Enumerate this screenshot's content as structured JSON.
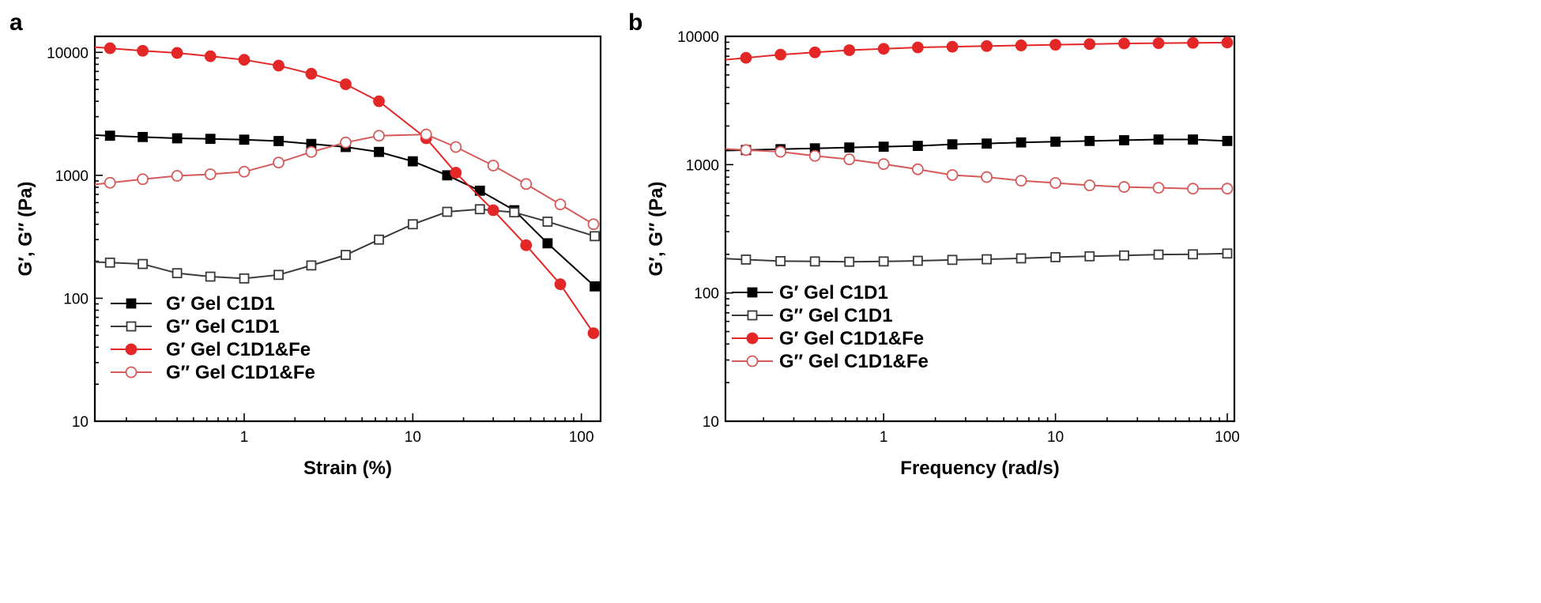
{
  "chart_data": [
    {
      "type": "line",
      "panel_label": "a",
      "xscale": "log",
      "yscale": "log",
      "xlim": [
        0.13,
        130
      ],
      "ylim": [
        10,
        13500
      ],
      "xticks": [
        1,
        10,
        100
      ],
      "xtick_labels": [
        "1",
        "10",
        "100"
      ],
      "yticks": [
        10,
        100,
        1000,
        10000
      ],
      "ytick_labels": [
        "10",
        "100",
        "1000",
        "10000"
      ],
      "xlabel": "Strain (%)",
      "ylabel": "G′, G″ (Pa)",
      "legend_position": "lower-left",
      "series": [
        {
          "name": "G′ Gel C1D1",
          "color": "#000000",
          "marker": "square-filled",
          "x": [
            0.16,
            0.25,
            0.4,
            0.63,
            1.0,
            1.6,
            2.5,
            4.0,
            6.3,
            10,
            16,
            25,
            40,
            63,
            120
          ],
          "y": [
            2100,
            2050,
            2000,
            1980,
            1950,
            1900,
            1800,
            1700,
            1550,
            1300,
            1000,
            750,
            520,
            280,
            125
          ]
        },
        {
          "name": "G″ Gel C1D1",
          "color": "#3a3a3a",
          "marker": "square-open",
          "x": [
            0.16,
            0.25,
            0.4,
            0.63,
            1.0,
            1.6,
            2.5,
            4.0,
            6.3,
            10,
            16,
            25,
            40,
            63,
            120
          ],
          "y": [
            195,
            190,
            160,
            150,
            145,
            155,
            185,
            225,
            300,
            400,
            505,
            530,
            500,
            420,
            320
          ]
        },
        {
          "name": "G′ Gel C1D1&Fe",
          "color": "#e32626",
          "marker": "circle-filled",
          "x": [
            0.16,
            0.25,
            0.4,
            0.63,
            1.0,
            1.6,
            2.5,
            4.0,
            6.3,
            12,
            18,
            30,
            47,
            75,
            118
          ],
          "y": [
            10800,
            10300,
            9900,
            9300,
            8700,
            7800,
            6700,
            5500,
            4000,
            2000,
            1050,
            520,
            270,
            130,
            52
          ]
        },
        {
          "name": "G″ Gel C1D1&Fe",
          "color": "#d65a5a",
          "marker": "circle-open",
          "x": [
            0.16,
            0.25,
            0.4,
            0.63,
            1.0,
            1.6,
            2.5,
            4.0,
            6.3,
            12,
            18,
            30,
            47,
            75,
            118
          ],
          "y": [
            870,
            930,
            990,
            1020,
            1070,
            1270,
            1550,
            1850,
            2100,
            2150,
            1700,
            1200,
            850,
            580,
            400
          ]
        }
      ]
    },
    {
      "type": "line",
      "panel_label": "b",
      "xscale": "log",
      "yscale": "log",
      "xlim": [
        0.12,
        110
      ],
      "ylim": [
        10,
        10000
      ],
      "xticks": [
        1,
        10,
        100
      ],
      "xtick_labels": [
        "1",
        "10",
        "100"
      ],
      "yticks": [
        10,
        100,
        1000,
        10000
      ],
      "ytick_labels": [
        "10",
        "100",
        "1000",
        "10000"
      ],
      "xlabel": "Frequency (rad/s)",
      "ylabel": "G′, G″ (Pa)",
      "legend_position": "lower-left",
      "series": [
        {
          "name": "G′ Gel C1D1",
          "color": "#000000",
          "marker": "square-filled",
          "x": [
            0.158,
            0.251,
            0.398,
            0.631,
            1.0,
            1.58,
            2.51,
            3.98,
            6.31,
            10,
            15.8,
            25.1,
            39.8,
            63.1,
            100
          ],
          "y": [
            1300,
            1320,
            1340,
            1360,
            1380,
            1400,
            1440,
            1460,
            1490,
            1510,
            1530,
            1550,
            1570,
            1570,
            1530
          ]
        },
        {
          "name": "G″ Gel C1D1",
          "color": "#3a3a3a",
          "marker": "square-open",
          "x": [
            0.158,
            0.251,
            0.398,
            0.631,
            1.0,
            1.58,
            2.51,
            3.98,
            6.31,
            10,
            15.8,
            25.1,
            39.8,
            63.1,
            100
          ],
          "y": [
            182,
            177,
            176,
            175,
            176,
            178,
            181,
            183,
            186,
            190,
            193,
            196,
            199,
            200,
            203
          ]
        },
        {
          "name": "G′ Gel C1D1&Fe",
          "color": "#e32626",
          "marker": "circle-filled",
          "x": [
            0.158,
            0.251,
            0.398,
            0.631,
            1.0,
            1.58,
            2.51,
            3.98,
            6.31,
            10,
            15.8,
            25.1,
            39.8,
            63.1,
            100
          ],
          "y": [
            6800,
            7200,
            7500,
            7800,
            8000,
            8200,
            8300,
            8400,
            8500,
            8600,
            8700,
            8800,
            8850,
            8900,
            8950
          ]
        },
        {
          "name": "G″ Gel C1D1&Fe",
          "color": "#d65a5a",
          "marker": "circle-open",
          "x": [
            0.158,
            0.251,
            0.398,
            0.631,
            1.0,
            1.58,
            2.51,
            3.98,
            6.31,
            10,
            15.8,
            25.1,
            39.8,
            63.1,
            100
          ],
          "y": [
            1300,
            1260,
            1170,
            1100,
            1010,
            920,
            830,
            800,
            750,
            720,
            690,
            670,
            660,
            650,
            650
          ]
        }
      ]
    }
  ]
}
